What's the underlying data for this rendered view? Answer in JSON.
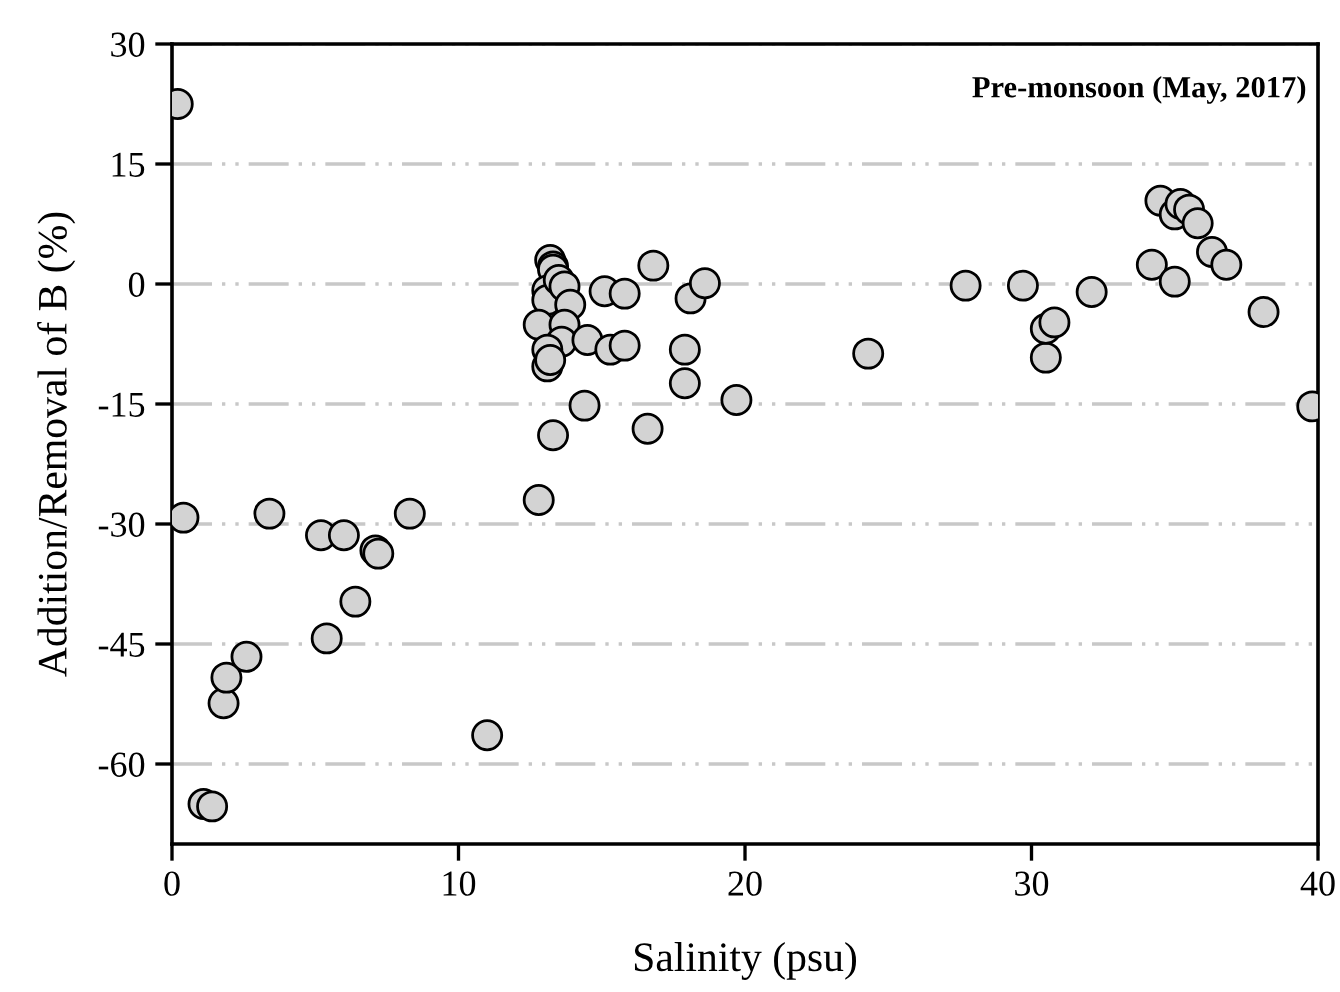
{
  "chart_data": {
    "type": "scatter",
    "xlabel": "Salinity (psu)",
    "ylabel": "Addition/Removal of B (%)",
    "annotations": [
      "Pre-monsoon (May, 2017)"
    ],
    "x": [
      0.2,
      0.4,
      1.1,
      1.4,
      1.8,
      1.9,
      2.6,
      3.4,
      5.2,
      5.4,
      6.0,
      6.4,
      7.1,
      7.2,
      8.3,
      11.0,
      12.8,
      13.2,
      13.3,
      13.3,
      13.1,
      13.1,
      13.5,
      13.7,
      13.9,
      12.8,
      13.7,
      13.6,
      13.1,
      13.1,
      13.2,
      13.3,
      14.4,
      14.5,
      15.1,
      15.3,
      15.8,
      15.8,
      16.6,
      16.8,
      17.9,
      17.9,
      18.1,
      18.6,
      19.7,
      24.3,
      27.7,
      29.7,
      30.5,
      30.5,
      30.8,
      32.1,
      34.2,
      34.5,
      35.0,
      35.0,
      35.2,
      35.5,
      35.8,
      36.3,
      36.8,
      38.1,
      39.8
    ],
    "series": [
      {
        "color": "#d3d3d3",
        "values": [
          22.5,
          -29.2,
          -65,
          -65.3,
          -52.4,
          -49.2,
          -46.6,
          -28.7,
          -31.4,
          -44.3,
          -31.4,
          -39.7,
          -33.3,
          -33.7,
          -28.7,
          -56.4,
          -27,
          3,
          2.2,
          1.8,
          -0.8,
          -2,
          0.5,
          -0.3,
          -2.6,
          -5.1,
          -5.1,
          -7.2,
          -8.2,
          -10.3,
          -9.5,
          -18.9,
          -15.2,
          -7,
          -0.9,
          -8.2,
          -1.2,
          -7.7,
          -18.1,
          2.3,
          -8.2,
          -12.4,
          -1.8,
          0.1,
          -14.5,
          -8.7,
          -0.2,
          -0.2,
          -9.2,
          -5.6,
          -4.8,
          -1,
          2.4,
          10.4,
          0.3,
          8.7,
          10,
          9.3,
          7.6,
          4,
          2.4,
          -3.5,
          -15.3
        ]
      }
    ],
    "xlim": [
      0,
      40
    ],
    "xticks": [
      0,
      10,
      20,
      30,
      40
    ],
    "ylim": [
      -70,
      30
    ],
    "yticks": [
      -60,
      -45,
      -30,
      -15,
      0,
      15,
      30
    ],
    "grid": "y",
    "marker": "circle"
  }
}
